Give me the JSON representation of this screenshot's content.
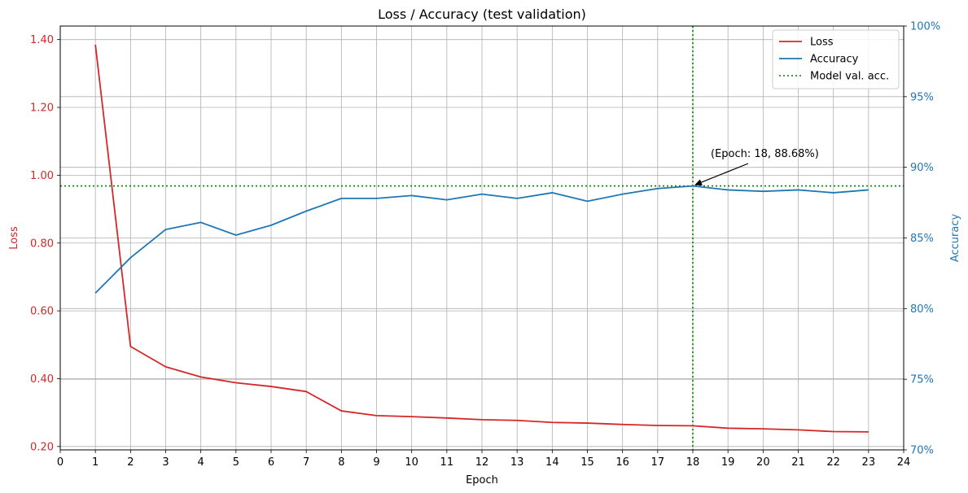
{
  "chart_data": {
    "type": "line",
    "title": "Loss / Accuracy (test validation)",
    "xlabel": "Epoch",
    "ylabel_left": "Loss",
    "ylabel_right": "Accuracy",
    "xlim": [
      0,
      24
    ],
    "x_ticks": [
      0,
      1,
      2,
      3,
      4,
      5,
      6,
      7,
      8,
      9,
      10,
      11,
      12,
      13,
      14,
      15,
      16,
      17,
      18,
      19,
      20,
      21,
      22,
      23,
      24
    ],
    "ylim_left": [
      0.19,
      1.44
    ],
    "y_ticks_left": [
      "0.20",
      "0.40",
      "0.60",
      "0.80",
      "1.00",
      "1.20",
      "1.40"
    ],
    "ylim_right": [
      70,
      100
    ],
    "y_ticks_right": [
      "70%",
      "75%",
      "80%",
      "85%",
      "90%",
      "95%",
      "100%"
    ],
    "grid": true,
    "legend_position": "top-right",
    "x": [
      1,
      2,
      3,
      4,
      5,
      6,
      7,
      8,
      9,
      10,
      11,
      12,
      13,
      14,
      15,
      16,
      17,
      18,
      19,
      20,
      21,
      22,
      23
    ],
    "series": [
      {
        "name": "Loss",
        "axis": "left",
        "color": "#d62728",
        "values": [
          1.385,
          0.495,
          0.435,
          0.405,
          0.388,
          0.377,
          0.362,
          0.305,
          0.291,
          0.288,
          0.284,
          0.279,
          0.277,
          0.271,
          0.269,
          0.265,
          0.262,
          0.261,
          0.254,
          0.252,
          0.249,
          0.244,
          0.243
        ]
      },
      {
        "name": "Accuracy",
        "axis": "right",
        "color": "#1f77b4",
        "values": [
          81.1,
          83.6,
          85.6,
          86.1,
          85.2,
          85.9,
          86.9,
          87.8,
          87.8,
          88.0,
          87.7,
          88.1,
          87.8,
          88.2,
          87.6,
          88.1,
          88.5,
          88.68,
          88.4,
          88.3,
          88.4,
          88.2,
          88.4
        ]
      }
    ],
    "reference_lines": {
      "name": "Model val. acc.",
      "color": "#008000",
      "style": "dotted",
      "x": 18,
      "y_accuracy": 88.68
    },
    "annotation": {
      "text": "(Epoch: 18, 88.68%)",
      "x": 18,
      "y": 88.68
    },
    "left_axis_color": "#d62728",
    "right_axis_color": "#1f77b4"
  }
}
